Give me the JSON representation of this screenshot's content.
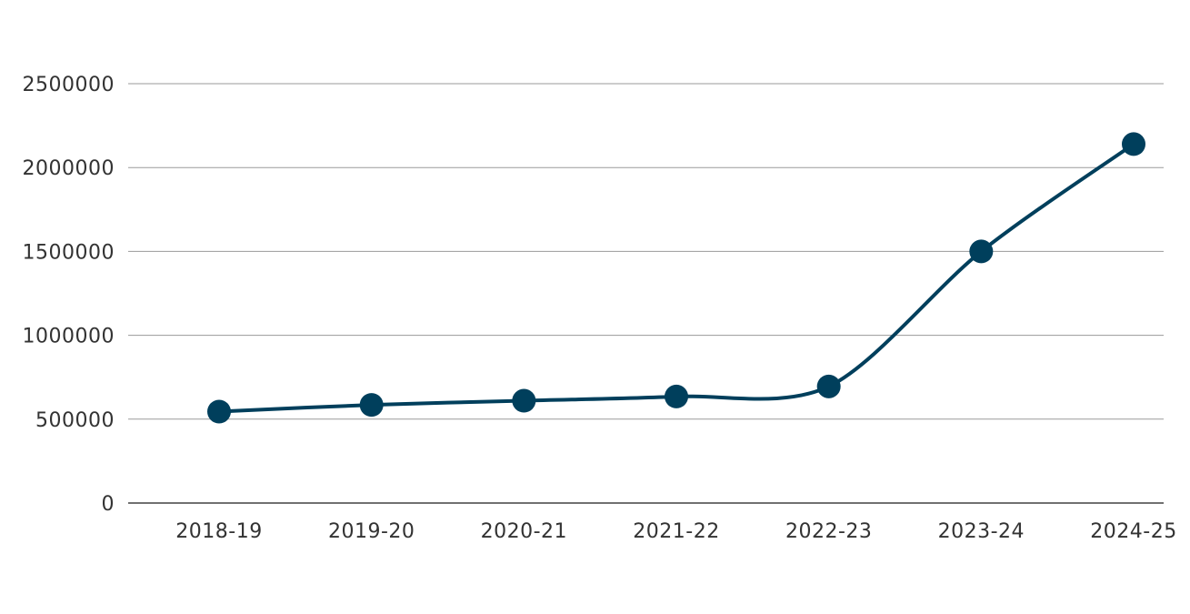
{
  "chart_data": {
    "type": "line",
    "title": "",
    "xlabel": "",
    "ylabel": "",
    "categories": [
      "2018-19",
      "2019-20",
      "2020-21",
      "2021-22",
      "2022-23",
      "2023-24",
      "2024-25"
    ],
    "series": [
      {
        "values": [
          545000,
          585000,
          610000,
          635000,
          695000,
          1500000,
          2140000
        ],
        "color": "#003f5c"
      }
    ],
    "yticks": [
      0,
      500000,
      1000000,
      1500000,
      2000000,
      2500000
    ],
    "ylim": [
      0,
      2500000
    ],
    "grid": true,
    "legend": "none"
  }
}
